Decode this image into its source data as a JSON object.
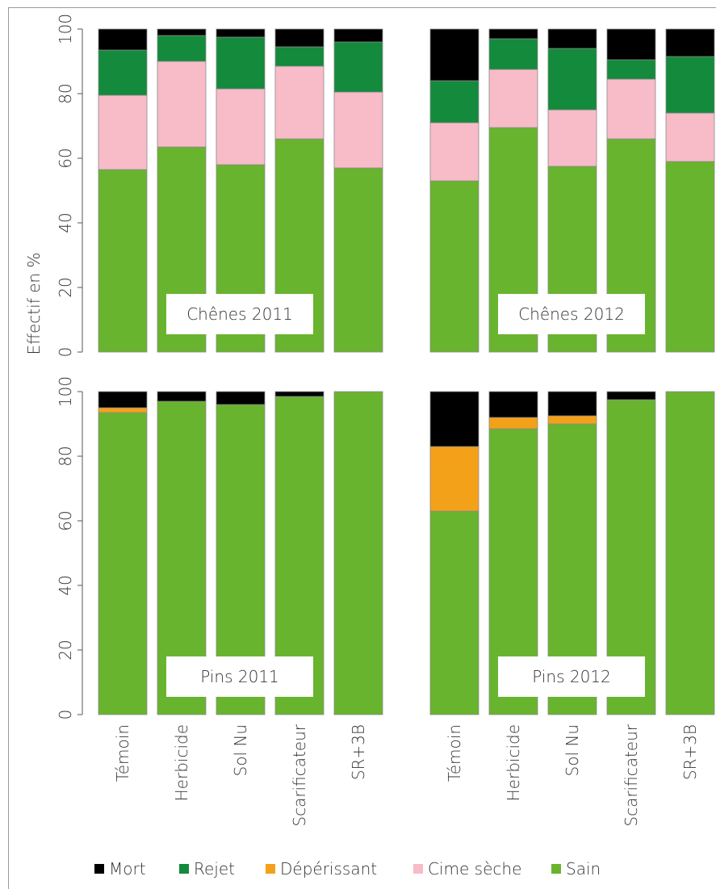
{
  "chart_data": [
    {
      "type": "bar",
      "stacked": true,
      "title": "Chênes 2011",
      "ylabel": "Effectif en %",
      "ylim": [
        0,
        100
      ],
      "yticks": [
        0,
        20,
        40,
        60,
        80,
        100
      ],
      "categories": [
        "Témoin",
        "Herbicide",
        "Sol Nu",
        "Scarificateur",
        "SR+3B"
      ],
      "series": [
        {
          "name": "Sain",
          "values": [
            56.5,
            63.5,
            58,
            66,
            57
          ]
        },
        {
          "name": "Dépérissant",
          "values": [
            0,
            0,
            0,
            0,
            0
          ]
        },
        {
          "name": "Cime sèche",
          "values": [
            23,
            26.5,
            23.5,
            22.5,
            23.5
          ]
        },
        {
          "name": "Rejet",
          "values": [
            14,
            8,
            16,
            6,
            15.5
          ]
        },
        {
          "name": "Mort",
          "values": [
            6.5,
            2,
            2.5,
            5.5,
            4
          ]
        }
      ]
    },
    {
      "type": "bar",
      "stacked": true,
      "title": "Chênes 2012",
      "ylim": [
        0,
        100
      ],
      "categories": [
        "Témoin",
        "Herbicide",
        "Sol Nu",
        "Scarificateur",
        "SR+3B"
      ],
      "series": [
        {
          "name": "Sain",
          "values": [
            53,
            69.5,
            57.5,
            66,
            59
          ]
        },
        {
          "name": "Dépérissant",
          "values": [
            0,
            0,
            0,
            0,
            0
          ]
        },
        {
          "name": "Cime sèche",
          "values": [
            18,
            18,
            17.5,
            18.5,
            15
          ]
        },
        {
          "name": "Rejet",
          "values": [
            13,
            9.5,
            19,
            6,
            17.5
          ]
        },
        {
          "name": "Mort",
          "values": [
            16,
            3,
            6,
            9.5,
            8.5
          ]
        }
      ]
    },
    {
      "type": "bar",
      "stacked": true,
      "title": "Pins 2011",
      "ylabel": "Effectif en %",
      "ylim": [
        0,
        100
      ],
      "yticks": [
        0,
        20,
        40,
        60,
        80,
        100
      ],
      "categories": [
        "Témoin",
        "Herbicide",
        "Sol Nu",
        "Scarificateur",
        "SR+3B"
      ],
      "series": [
        {
          "name": "Sain",
          "values": [
            93.5,
            97,
            96,
            98.5,
            100
          ]
        },
        {
          "name": "Dépérissant",
          "values": [
            1.5,
            0,
            0,
            0,
            0
          ]
        },
        {
          "name": "Cime sèche",
          "values": [
            0,
            0,
            0,
            0,
            0
          ]
        },
        {
          "name": "Rejet",
          "values": [
            0,
            0,
            0,
            0,
            0
          ]
        },
        {
          "name": "Mort",
          "values": [
            5,
            3,
            4,
            1.5,
            0
          ]
        }
      ]
    },
    {
      "type": "bar",
      "stacked": true,
      "title": "Pins 2012",
      "ylim": [
        0,
        100
      ],
      "categories": [
        "Témoin",
        "Herbicide",
        "Sol Nu",
        "Scarificateur",
        "SR+3B"
      ],
      "series": [
        {
          "name": "Sain",
          "values": [
            63,
            88.5,
            90,
            97.5,
            100
          ]
        },
        {
          "name": "Dépérissant",
          "values": [
            20,
            3.5,
            2.5,
            0,
            0
          ]
        },
        {
          "name": "Cime sèche",
          "values": [
            0,
            0,
            0,
            0,
            0
          ]
        },
        {
          "name": "Rejet",
          "values": [
            0,
            0,
            0,
            0,
            0
          ]
        },
        {
          "name": "Mort",
          "values": [
            17,
            8,
            7.5,
            2.5,
            0
          ]
        }
      ]
    }
  ],
  "legend": {
    "placement": "bottom",
    "items": [
      {
        "name": "Mort",
        "color": "#000000"
      },
      {
        "name": "Rejet",
        "color": "#138a3c"
      },
      {
        "name": "Dépérissant",
        "color": "#f4a11a"
      },
      {
        "name": "Cime sèche",
        "color": "#f7bcc8"
      },
      {
        "name": "Sain",
        "color": "#69b42e"
      }
    ]
  },
  "series_colors": {
    "Sain": "#69b42e",
    "Dépérissant": "#f4a11a",
    "Cime sèche": "#f7bcc8",
    "Rejet": "#138a3c",
    "Mort": "#000000"
  },
  "ylabel": "Effectif en %"
}
